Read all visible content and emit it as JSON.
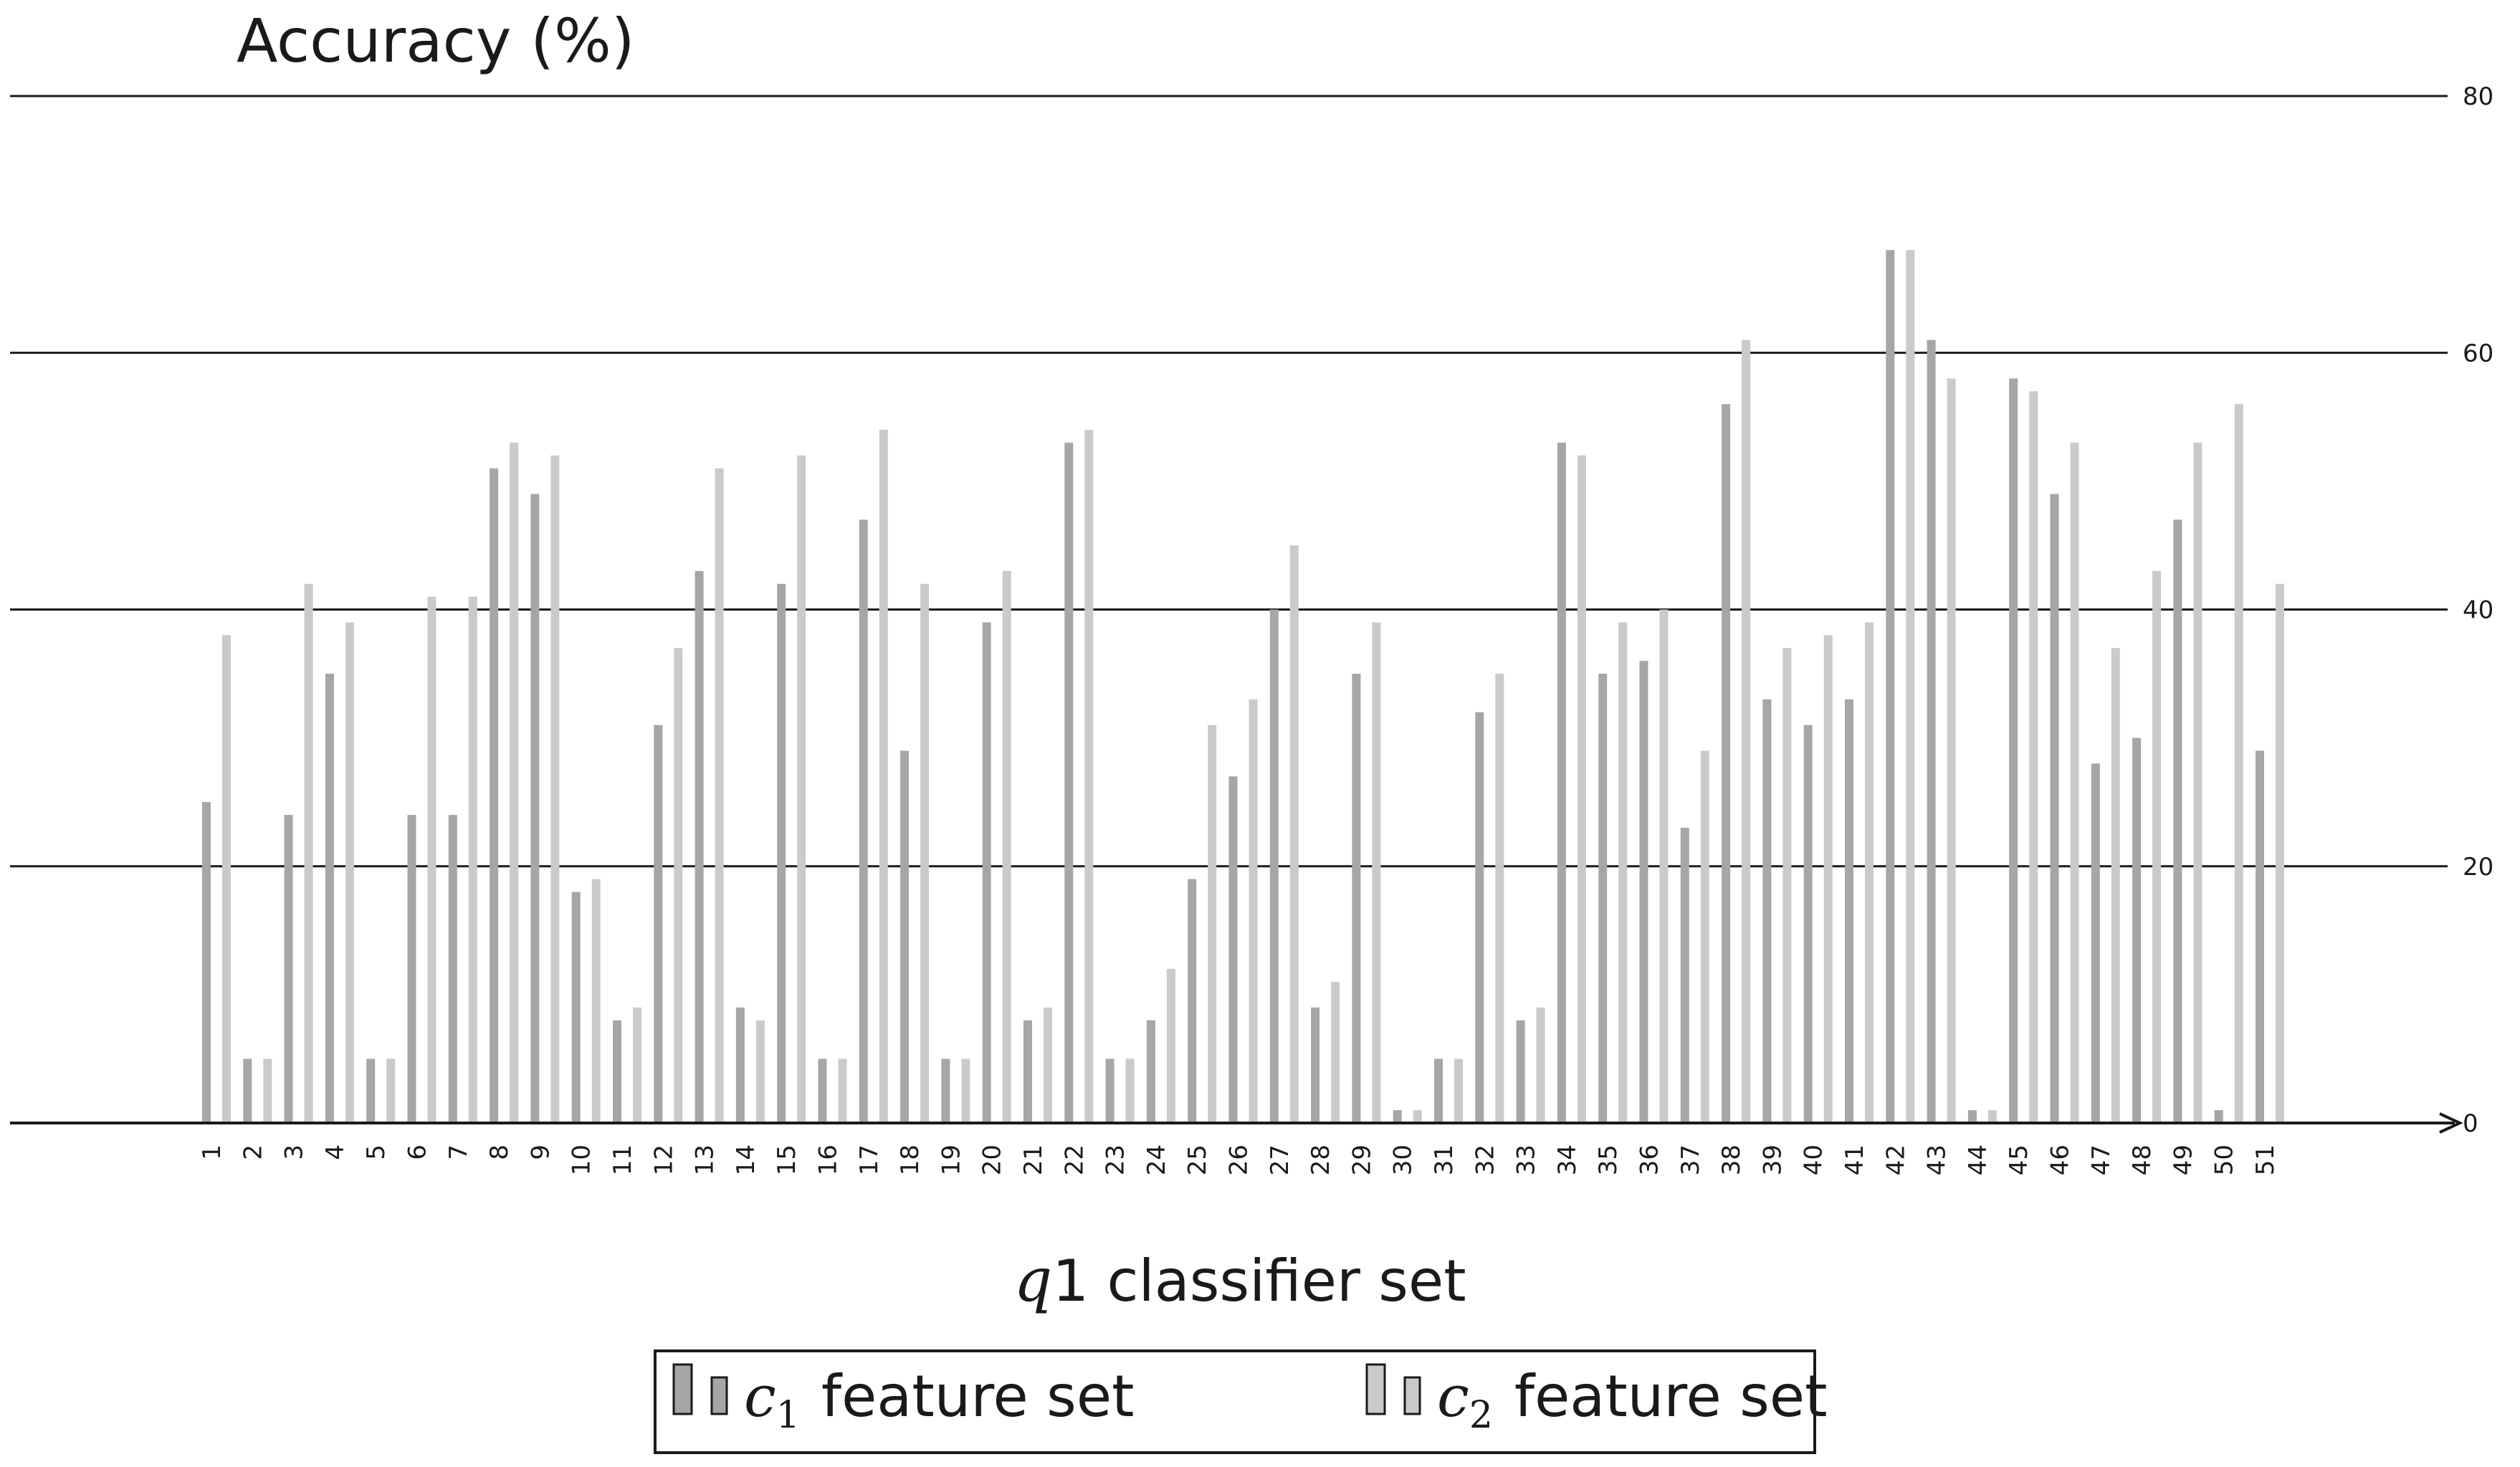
{
  "chart_data": {
    "type": "bar",
    "ylabel": "Accuracy (%)",
    "xlabel": {
      "italic": "q",
      "rest": "1 classifier set"
    },
    "ylim": [
      0,
      80
    ],
    "yticks": [
      "0",
      "20",
      "40",
      "60",
      "80"
    ],
    "grid": "horizontal",
    "legend_position": "bottom",
    "categories": [
      "1",
      "2",
      "3",
      "4",
      "5",
      "6",
      "7",
      "8",
      "9",
      "10",
      "11",
      "12",
      "13",
      "14",
      "15",
      "16",
      "17",
      "18",
      "19",
      "20",
      "21",
      "22",
      "23",
      "24",
      "25",
      "26",
      "27",
      "28",
      "29",
      "30",
      "31",
      "32",
      "33",
      "34",
      "35",
      "36",
      "37",
      "38",
      "39",
      "40",
      "41",
      "42",
      "43",
      "44",
      "45",
      "46",
      "47",
      "48",
      "49",
      "50",
      "51"
    ],
    "series": [
      {
        "name": "c1 feature set",
        "legend": {
          "symbol": "c",
          "sub": "1",
          "text": "feature set"
        },
        "color": "#a6a6a8",
        "values": [
          25,
          5,
          24,
          35,
          5,
          24,
          24,
          51,
          49,
          18,
          8,
          31,
          43,
          9,
          42,
          5,
          47,
          29,
          5,
          39,
          8,
          53,
          5,
          8,
          19,
          27,
          40,
          9,
          35,
          1,
          5,
          32,
          8,
          53,
          35,
          36,
          23,
          56,
          33,
          31,
          33,
          68,
          61,
          1,
          58,
          49,
          28,
          30,
          47,
          1,
          29
        ]
      },
      {
        "name": "c2 feature set",
        "legend": {
          "symbol": "c",
          "sub": "2",
          "text": "feature set"
        },
        "color": "#cacacb",
        "values": [
          38,
          5,
          42,
          39,
          5,
          41,
          41,
          53,
          52,
          19,
          9,
          37,
          51,
          8,
          52,
          5,
          54,
          42,
          5,
          43,
          9,
          54,
          5,
          12,
          31,
          33,
          45,
          11,
          39,
          1,
          5,
          35,
          9,
          52,
          39,
          40,
          29,
          61,
          37,
          38,
          39,
          68,
          58,
          1,
          57,
          53,
          37,
          43,
          53,
          56,
          42
        ]
      }
    ]
  }
}
